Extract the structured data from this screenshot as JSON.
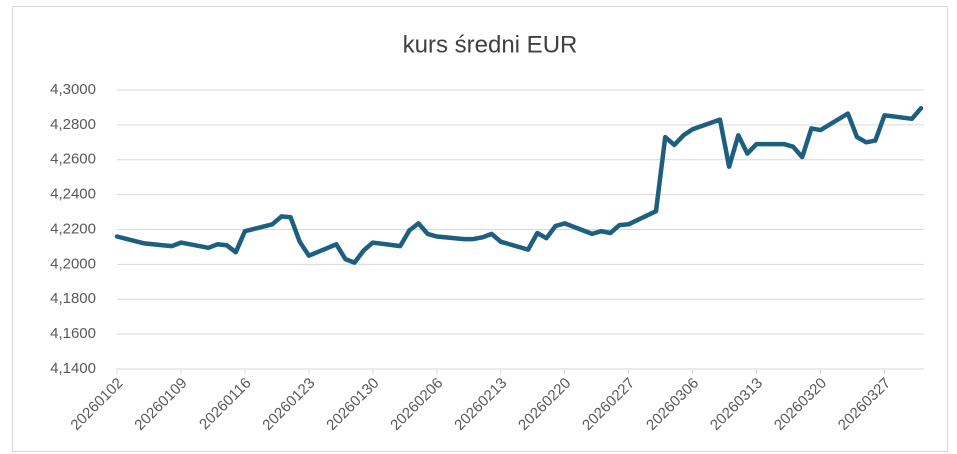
{
  "chart_data": {
    "type": "line",
    "title": "kurs średni EUR",
    "x": [
      "2026-01-02",
      "2026-01-05",
      "2026-01-07",
      "2026-01-08",
      "2026-01-09",
      "2026-01-12",
      "2026-01-13",
      "2026-01-14",
      "2026-01-15",
      "2026-01-16",
      "2026-01-19",
      "2026-01-20",
      "2026-01-21",
      "2026-01-22",
      "2026-01-23",
      "2026-01-26",
      "2026-01-27",
      "2026-01-28",
      "2026-01-29",
      "2026-01-30",
      "2026-02-02",
      "2026-02-03",
      "2026-02-04",
      "2026-02-05",
      "2026-02-06",
      "2026-02-09",
      "2026-02-10",
      "2026-02-11",
      "2026-02-12",
      "2026-02-13",
      "2026-02-16",
      "2026-02-17",
      "2026-02-18",
      "2026-02-19",
      "2026-02-20",
      "2026-02-23",
      "2026-02-24",
      "2026-02-25",
      "2026-02-26",
      "2026-02-27",
      "2026-03-02",
      "2026-03-03",
      "2026-03-04",
      "2026-03-05",
      "2026-03-06",
      "2026-03-09",
      "2026-03-10",
      "2026-03-11",
      "2026-03-12",
      "2026-03-13",
      "2026-03-16",
      "2026-03-17",
      "2026-03-18",
      "2026-03-19",
      "2026-03-20",
      "2026-03-23",
      "2026-03-24",
      "2026-03-25",
      "2026-03-26",
      "2026-03-27",
      "2026-03-30",
      "2026-03-31"
    ],
    "series": [
      {
        "name": "kurs średni EUR",
        "color": "#1d5f80",
        "values": [
          4.216,
          4.212,
          4.211,
          4.2105,
          4.2125,
          4.2095,
          4.2115,
          4.211,
          4.207,
          4.219,
          4.223,
          4.2275,
          4.227,
          4.213,
          4.205,
          4.2115,
          4.203,
          4.201,
          4.208,
          4.2125,
          4.2105,
          4.2195,
          4.2235,
          4.2175,
          4.216,
          4.2145,
          4.2145,
          4.2155,
          4.2175,
          4.213,
          4.2085,
          4.218,
          4.215,
          4.222,
          4.2235,
          4.2175,
          4.219,
          4.218,
          4.2225,
          4.223,
          4.2305,
          4.273,
          4.2685,
          4.274,
          4.2775,
          4.283,
          4.256,
          4.274,
          4.2635,
          4.269,
          4.269,
          4.2675,
          4.2615,
          4.278,
          4.277,
          4.2865,
          4.273,
          4.27,
          4.271,
          4.2855,
          4.2835,
          4.2895
        ]
      }
    ],
    "xlim": [
      "2026-01-02",
      "2026-03-31"
    ],
    "xticks": [
      {
        "value": "2026-01-02",
        "label": "20260102"
      },
      {
        "value": "2026-01-09",
        "label": "20260109"
      },
      {
        "value": "2026-01-16",
        "label": "20260116"
      },
      {
        "value": "2026-01-23",
        "label": "20260123"
      },
      {
        "value": "2026-01-30",
        "label": "20260130"
      },
      {
        "value": "2026-02-06",
        "label": "20260206"
      },
      {
        "value": "2026-02-13",
        "label": "20260213"
      },
      {
        "value": "2026-02-20",
        "label": "20260220"
      },
      {
        "value": "2026-02-27",
        "label": "20260227"
      },
      {
        "value": "2026-03-06",
        "label": "20260306"
      },
      {
        "value": "2026-03-13",
        "label": "20260313"
      },
      {
        "value": "2026-03-20",
        "label": "20260320"
      },
      {
        "value": "2026-03-27",
        "label": "20260327"
      }
    ],
    "ylim": [
      4.14,
      4.3
    ],
    "yticks": [
      {
        "value": 4.14,
        "label": "4,1400"
      },
      {
        "value": 4.16,
        "label": "4,1600"
      },
      {
        "value": 4.18,
        "label": "4,1800"
      },
      {
        "value": 4.2,
        "label": "4,2000"
      },
      {
        "value": 4.22,
        "label": "4,2200"
      },
      {
        "value": 4.24,
        "label": "4,2400"
      },
      {
        "value": 4.26,
        "label": "4,2600"
      },
      {
        "value": 4.28,
        "label": "4,2800"
      },
      {
        "value": 4.3,
        "label": "4,3000"
      }
    ],
    "grid": true
  }
}
